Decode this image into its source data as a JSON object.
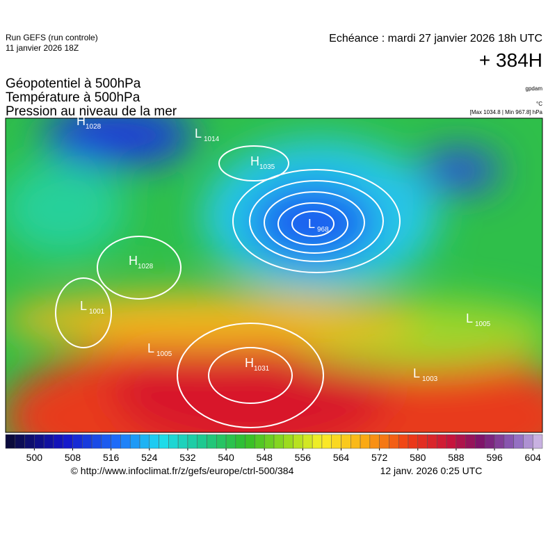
{
  "header": {
    "run": "Run GEFS (run controle)",
    "run_date": "11 janvier 2026 18Z",
    "valid": "Echéance : mardi 27 janvier 2026 18h UTC",
    "lead": "+ 384H",
    "fields": [
      "Géopotentiel à 500hPa",
      "Température à 500hPa",
      "Pression au niveau de la mer"
    ],
    "unit_geo": "gpdam",
    "unit_temp": "°C",
    "extremes": "[Max 1034.8 | Min 967.8] hPa"
  },
  "centers": [
    {
      "letter": "H",
      "value": 1028
    },
    {
      "letter": "L",
      "value": 1014
    },
    {
      "letter": "H",
      "value": 1035
    },
    {
      "letter": "L",
      "value": 968
    },
    {
      "letter": "H",
      "value": 1028
    },
    {
      "letter": "L",
      "value": 1001
    },
    {
      "letter": "L",
      "value": 1005
    },
    {
      "letter": "H",
      "value": 1031
    },
    {
      "letter": "L",
      "value": 1005
    },
    {
      "letter": "L",
      "value": 1003
    }
  ],
  "colorbar": {
    "min": 494,
    "max": 606,
    "step": 2,
    "ticks": [
      500,
      508,
      516,
      524,
      532,
      540,
      548,
      556,
      564,
      572,
      580,
      588,
      596,
      604
    ]
  },
  "footer": {
    "source": "© http://www.infoclimat.fr/z/gefs/europe/ctrl-500/384",
    "generated": "12 janv. 2026  0:25 UTC"
  }
}
